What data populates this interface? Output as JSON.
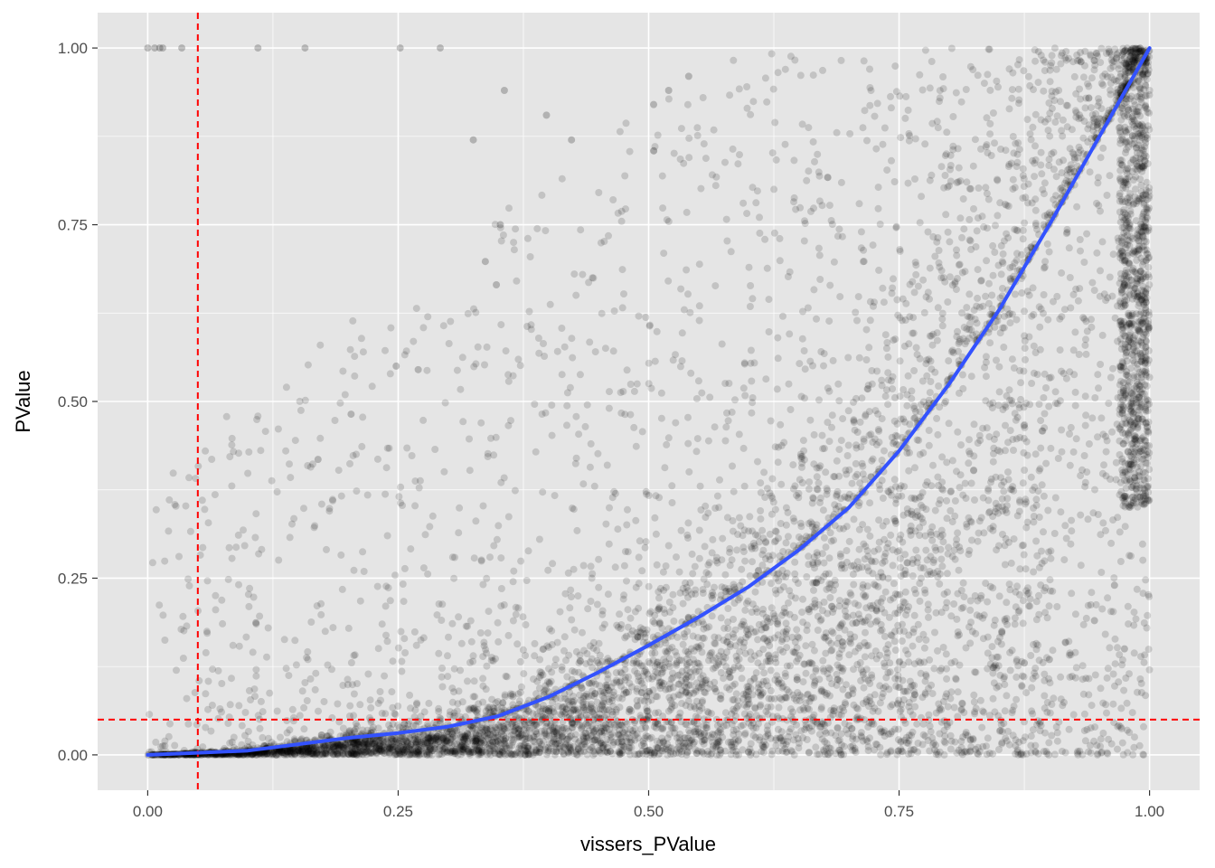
{
  "chart_data": {
    "type": "scatter",
    "title": "",
    "xlabel": "vissers_PValue",
    "ylabel": "PValue",
    "xlim": [
      -0.05,
      1.05
    ],
    "ylim": [
      -0.05,
      1.05
    ],
    "grid": true,
    "x_ticks": [
      0.0,
      0.25,
      0.5,
      0.75,
      1.0
    ],
    "x_tick_labels": [
      "0.00",
      "0.25",
      "0.50",
      "0.75",
      "1.00"
    ],
    "y_ticks": [
      0.0,
      0.25,
      0.5,
      0.75,
      1.0
    ],
    "y_tick_labels": [
      "0.00",
      "0.25",
      "0.50",
      "0.75",
      "1.00"
    ],
    "colors": {
      "panel": "#e5e5e5",
      "grid": "#ffffff",
      "points": "#000000",
      "smooth": "#3352ff",
      "threshold": "#ff0000"
    },
    "point_alpha": 0.15,
    "thresholds": {
      "x": 0.05,
      "y": 0.05
    },
    "outlier_points": [
      {
        "x": 0.0,
        "y": 1.0
      },
      {
        "x": 0.007,
        "y": 1.0
      },
      {
        "x": 0.012,
        "y": 1.0
      },
      {
        "x": 0.015,
        "y": 1.0
      },
      {
        "x": 0.034,
        "y": 1.0
      },
      {
        "x": 0.11,
        "y": 1.0
      },
      {
        "x": 0.157,
        "y": 1.0
      },
      {
        "x": 0.252,
        "y": 1.0
      },
      {
        "x": 0.292,
        "y": 1.0
      },
      {
        "x": 0.356,
        "y": 0.94
      },
      {
        "x": 0.398,
        "y": 0.905
      },
      {
        "x": 0.423,
        "y": 0.87
      },
      {
        "x": 0.325,
        "y": 0.87
      },
      {
        "x": 0.337,
        "y": 0.698
      },
      {
        "x": 0.348,
        "y": 0.665
      },
      {
        "x": 0.352,
        "y": 0.75
      },
      {
        "x": 0.203,
        "y": 0.482
      },
      {
        "x": 0.17,
        "y": 0.418
      },
      {
        "x": 0.248,
        "y": 0.55
      },
      {
        "x": 0.27,
        "y": 0.545
      },
      {
        "x": 0.108,
        "y": 0.187
      },
      {
        "x": 0.52,
        "y": 0.94
      },
      {
        "x": 0.505,
        "y": 0.92
      },
      {
        "x": 0.54,
        "y": 0.96
      },
      {
        "x": 0.975,
        "y": 0.15
      },
      {
        "x": 0.965,
        "y": 0.24
      },
      {
        "x": 0.9,
        "y": 0.135
      },
      {
        "x": 0.875,
        "y": 0.13
      },
      {
        "x": 0.945,
        "y": 0.19
      }
    ],
    "smooth_line": {
      "x": [
        0.0,
        0.05,
        0.1,
        0.15,
        0.2,
        0.25,
        0.3,
        0.35,
        0.4,
        0.45,
        0.5,
        0.55,
        0.6,
        0.65,
        0.7,
        0.75,
        0.8,
        0.85,
        0.9,
        0.95,
        1.0
      ],
      "y": [
        0.0,
        0.003,
        0.006,
        0.015,
        0.024,
        0.031,
        0.04,
        0.055,
        0.082,
        0.117,
        0.155,
        0.195,
        0.238,
        0.29,
        0.35,
        0.43,
        0.525,
        0.63,
        0.75,
        0.875,
        1.0
      ]
    }
  }
}
